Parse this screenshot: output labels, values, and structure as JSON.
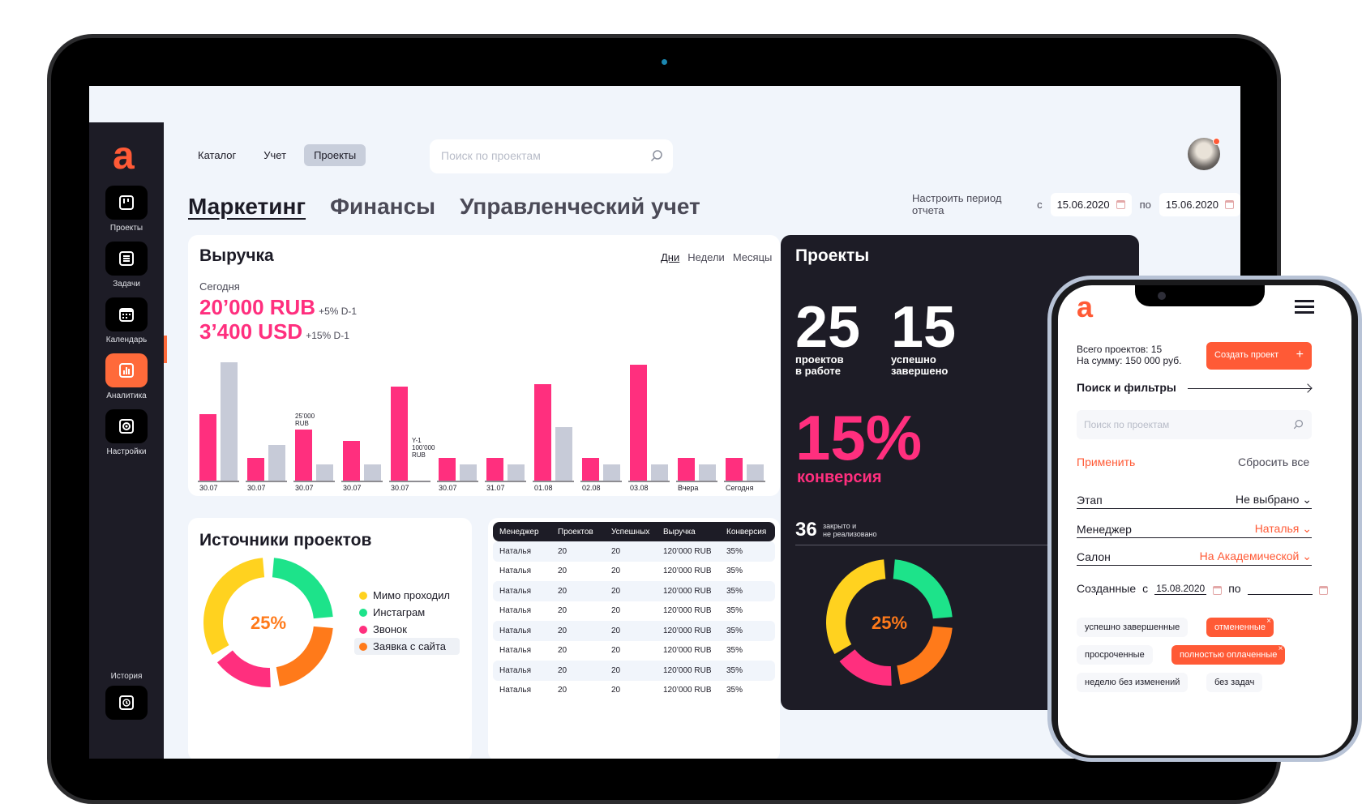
{
  "sidebar": {
    "items": [
      {
        "label": "Проекты",
        "icon": "projects-icon"
      },
      {
        "label": "Задачи",
        "icon": "tasks-icon"
      },
      {
        "label": "Календарь",
        "icon": "calendar-icon"
      },
      {
        "label": "Аналитика",
        "icon": "analytics-icon",
        "active": true
      },
      {
        "label": "Настройки",
        "icon": "settings-icon"
      }
    ],
    "history_label": "История"
  },
  "nav": [
    "Каталог",
    "Учет",
    "Проекты"
  ],
  "nav_selected": "Проекты",
  "search": {
    "placeholder": "Поиск по проектам"
  },
  "tabs": [
    "Маркетинг",
    "Финансы",
    "Управленческий учет"
  ],
  "period": {
    "label": "Настроить период отчета",
    "from_label": "с",
    "from": "15.06.2020",
    "to_label": "по",
    "to": "15.06.2020"
  },
  "revenue": {
    "title": "Выручка",
    "periods": [
      "Дни",
      "Недели",
      "Месяцы"
    ],
    "today_label": "Сегодня",
    "amount_rub": "20’000 RUB",
    "delta_rub": "+5% D-1",
    "amount_usd": "3’400 USD",
    "delta_usd": "+15% D-1"
  },
  "chart_data": {
    "type": "bar",
    "categories": [
      "30.07",
      "30.07",
      "30.07",
      "30.07",
      "30.07",
      "30.07",
      "31.07",
      "01.08",
      "02.08",
      "03.08",
      "Вчера",
      "Сегодня"
    ],
    "series": [
      {
        "values": [
          82,
          28,
          63,
          49,
          116,
          28,
          28,
          119,
          28,
          143,
          28,
          28
        ]
      },
      {
        "values": [
          146,
          44,
          20,
          20,
          0,
          20,
          20,
          66,
          20,
          20,
          20,
          20
        ]
      }
    ],
    "annotations": [
      {
        "category_index": 2,
        "text": "25’000 RUB"
      },
      {
        "category_index": 4,
        "text": "Y-1 100’000 RUB"
      }
    ],
    "colors": [
      "#ff2f7e",
      "#c7cbd8"
    ]
  },
  "sources": {
    "title": "Источники проектов",
    "center": "25%",
    "legend": [
      {
        "label": "Мимо проходил",
        "color": "#ffd21f"
      },
      {
        "label": "Инстаграм",
        "color": "#1de38a"
      },
      {
        "label": "Звонок",
        "color": "#ff2f7e"
      },
      {
        "label": "Заявка с сайта",
        "color": "#ff7a1a"
      }
    ]
  },
  "table": {
    "headers": [
      "Менеджер",
      "Проектов",
      "Успешных",
      "Выручка",
      "Конверсия"
    ],
    "rows": [
      [
        "Наталья",
        "20",
        "20",
        "120’000 RUB",
        "35%"
      ],
      [
        "Наталья",
        "20",
        "20",
        "120’000 RUB",
        "35%"
      ],
      [
        "Наталья",
        "20",
        "20",
        "120’000 RUB",
        "35%"
      ],
      [
        "Наталья",
        "20",
        "20",
        "120’000 RUB",
        "35%"
      ],
      [
        "Наталья",
        "20",
        "20",
        "120’000 RUB",
        "35%"
      ],
      [
        "Наталья",
        "20",
        "20",
        "120’000 RUB",
        "35%"
      ],
      [
        "Наталья",
        "20",
        "20",
        "120’000 RUB",
        "35%"
      ],
      [
        "Наталья",
        "20",
        "20",
        "120’000 RUB",
        "35%"
      ]
    ]
  },
  "projects": {
    "title": "Проекты",
    "in_work": "25",
    "in_work_label_1": "проектов",
    "in_work_label_2": "в работе",
    "done": "15",
    "done_label_1": "успешно",
    "done_label_2": "завершено",
    "conversion": "15%",
    "conversion_label": "конверсия",
    "closed": "36",
    "closed_label_1": "закрыто и",
    "closed_label_2": "не реализовано",
    "center": "25%"
  },
  "mobile": {
    "total_1": "Всего проектов: 15",
    "total_2": "На сумму: 150 000 руб.",
    "create_label": "Создать проект",
    "filters_label": "Поиск и фильтры",
    "search_placeholder": "Поиск по проектам",
    "apply": "Применить",
    "reset": "Сбросить все",
    "fields": [
      {
        "label": "Этап",
        "value": "Не выбрано"
      },
      {
        "label": "Менеджер",
        "value": "Наталья"
      },
      {
        "label": "Салон",
        "value": "На Академической"
      }
    ],
    "created_label": "Созданные",
    "created_from_label": "с",
    "created_from": "15.08.2020",
    "created_to_label": "по",
    "tags": [
      {
        "label": "успешно завершенные",
        "selected": false
      },
      {
        "label": "отмененные",
        "selected": true
      },
      {
        "label": "просроченные",
        "selected": false
      },
      {
        "label": "полностью оплаченные",
        "selected": true
      },
      {
        "label": "неделю без изменений",
        "selected": false
      },
      {
        "label": "без задач",
        "selected": false
      }
    ]
  }
}
